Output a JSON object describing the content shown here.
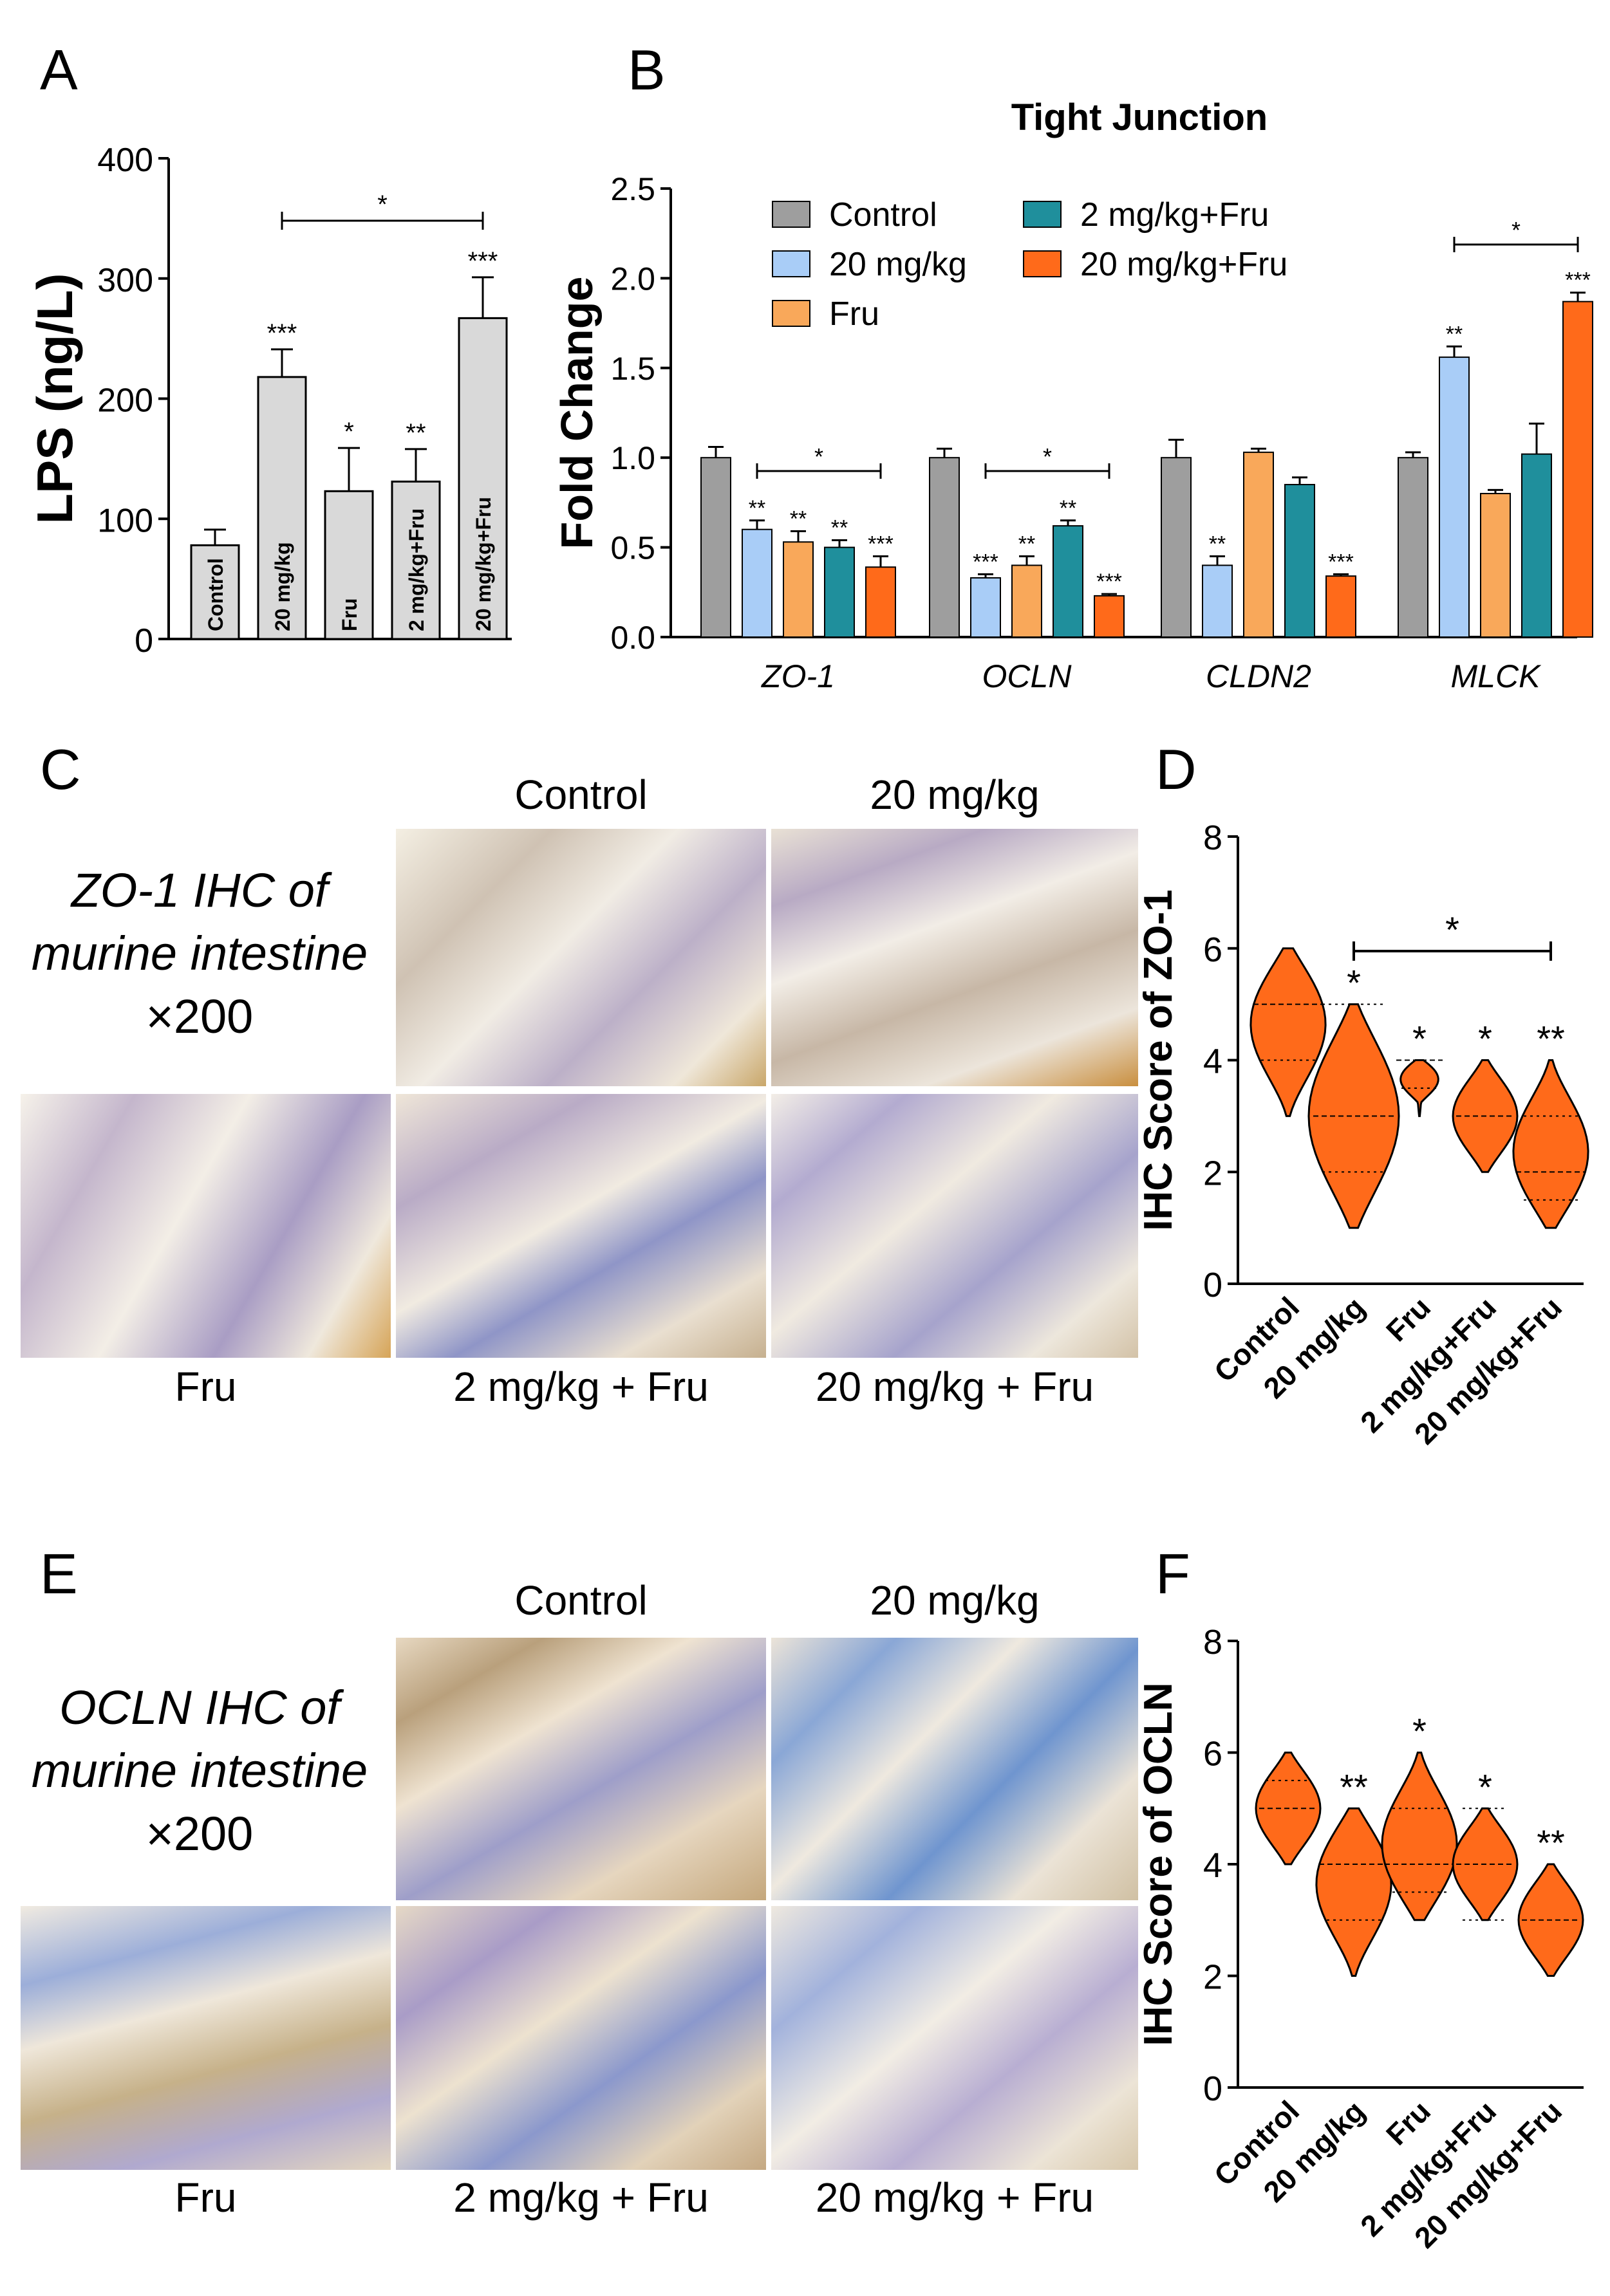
{
  "panels": {
    "a": "A",
    "b": "B",
    "c": "C",
    "d": "D",
    "e": "E",
    "f": "F"
  },
  "colors": {
    "control": "#9e9e9e",
    "dose20": "#a9cdf7",
    "fru": "#f9a85a",
    "dose2fru": "#1f8f9c",
    "dose20fru": "#ff6a1a",
    "violin": "#ff6a1a",
    "barA": "#d9d9d9"
  },
  "chart_data": [
    {
      "id": "A",
      "type": "bar",
      "title": "",
      "ylabel": "LPS (ng/L)",
      "ylim": [
        0,
        400
      ],
      "yticks": [
        "0",
        "100",
        "200",
        "300",
        "400"
      ],
      "categories": [
        "Control",
        "20 mg/kg",
        "Fru",
        "2 mg/kg+Fru",
        "20 mg/kg+Fru"
      ],
      "values": [
        78,
        218,
        123,
        131,
        267
      ],
      "errors": [
        13,
        23,
        36,
        27,
        34
      ],
      "significance": [
        "",
        "***",
        "*",
        "**",
        "***"
      ],
      "comparisons": [
        {
          "from": 1,
          "to": 4,
          "label": "*"
        }
      ]
    },
    {
      "id": "B",
      "type": "bar",
      "title": "Tight Junction",
      "ylabel": "Fold Change",
      "ylim": [
        0,
        2.5
      ],
      "yticks": [
        "0.0",
        "0.5",
        "1.0",
        "1.5",
        "2.0",
        "2.5"
      ],
      "categories": [
        "ZO-1",
        "OCLN",
        "CLDN2",
        "MLCK"
      ],
      "legend": [
        "Control",
        "20 mg/kg",
        "Fru",
        "2 mg/kg+Fru",
        "20 mg/kg+Fru"
      ],
      "series": [
        {
          "name": "Control",
          "values": [
            1.0,
            1.0,
            1.0,
            1.0
          ],
          "errors": [
            0.06,
            0.05,
            0.1,
            0.03
          ],
          "sig": [
            "",
            "",
            "",
            ""
          ]
        },
        {
          "name": "20 mg/kg",
          "values": [
            0.6,
            0.33,
            0.4,
            1.56
          ],
          "errors": [
            0.05,
            0.02,
            0.05,
            0.06
          ],
          "sig": [
            "**",
            "***",
            "**",
            "**"
          ]
        },
        {
          "name": "Fru",
          "values": [
            0.53,
            0.4,
            1.03,
            0.8
          ],
          "errors": [
            0.06,
            0.05,
            0.02,
            0.02
          ],
          "sig": [
            "**",
            "**",
            "",
            ""
          ]
        },
        {
          "name": "2 mg/kg+Fru",
          "values": [
            0.5,
            0.62,
            0.85,
            1.02
          ],
          "errors": [
            0.04,
            0.03,
            0.04,
            0.17
          ],
          "sig": [
            "**",
            "**",
            "",
            ""
          ]
        },
        {
          "name": "20 mg/kg+Fru",
          "values": [
            0.39,
            0.23,
            0.34,
            1.87
          ],
          "errors": [
            0.06,
            0.01,
            0.01,
            0.05
          ],
          "sig": [
            "***",
            "***",
            "***",
            "***"
          ]
        }
      ],
      "comparisons": [
        {
          "group": 0,
          "from": 1,
          "to": 4,
          "label": "*"
        },
        {
          "group": 1,
          "from": 1,
          "to": 4,
          "label": "*"
        },
        {
          "group": 3,
          "from": 1,
          "to": 4,
          "label": "*"
        }
      ]
    },
    {
      "id": "D",
      "type": "violin",
      "ylabel": "IHC Score of ZO-1",
      "ylim": [
        0,
        8
      ],
      "yticks": [
        "0",
        "2",
        "4",
        "6",
        "8"
      ],
      "categories": [
        "Control",
        "20 mg/kg",
        "Fru",
        "2 mg/kg+Fru",
        "20 mg/kg+Fru"
      ],
      "min": [
        3,
        1,
        3,
        2,
        1
      ],
      "max": [
        6,
        5,
        4,
        4,
        4
      ],
      "median": [
        5,
        3,
        4,
        3,
        2
      ],
      "q1": [
        4,
        2,
        3.5,
        3,
        1.5
      ],
      "q3": [
        5,
        5,
        4,
        3,
        3
      ],
      "significance": [
        "",
        "*",
        "*",
        "*",
        "**"
      ],
      "comparisons": [
        {
          "from": 1,
          "to": 4,
          "label": "*"
        }
      ]
    },
    {
      "id": "F",
      "type": "violin",
      "ylabel": "IHC Score of OCLN",
      "ylim": [
        0,
        8
      ],
      "yticks": [
        "0",
        "2",
        "4",
        "6",
        "8"
      ],
      "categories": [
        "Control",
        "20 mg/kg",
        "Fru",
        "2 mg/kg+Fru",
        "20 mg/kg+Fru"
      ],
      "min": [
        4,
        2,
        3,
        3,
        2
      ],
      "max": [
        6,
        5,
        6,
        5,
        4
      ],
      "median": [
        5,
        4,
        4,
        4,
        3
      ],
      "q1": [
        5,
        3,
        3.5,
        3,
        3
      ],
      "q3": [
        5.5,
        4,
        5,
        5,
        3
      ],
      "significance": [
        "",
        "**",
        "*",
        "*",
        "**"
      ],
      "comparisons": []
    }
  ],
  "panelC": {
    "label_line1": "ZO-1 IHC of",
    "label_line2": "murine intestine",
    "magnification": "×200",
    "top_captions": [
      "Control",
      "20 mg/kg"
    ],
    "bottom_captions": [
      "Fru",
      "2 mg/kg + Fru",
      "20 mg/kg + Fru"
    ]
  },
  "panelE": {
    "label_line1": "OCLN IHC of",
    "label_line2": "murine intestine",
    "magnification": "×200",
    "top_captions": [
      "Control",
      "20 mg/kg"
    ],
    "bottom_captions": [
      "Fru",
      "2 mg/kg + Fru",
      "20 mg/kg + Fru"
    ]
  }
}
